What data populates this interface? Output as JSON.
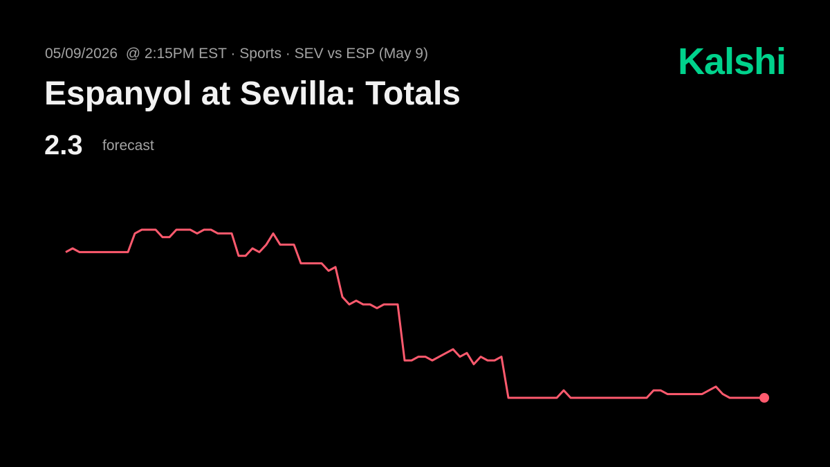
{
  "chart_data": {
    "type": "line",
    "brand": "Kalshi",
    "subtitle": "05/09/2026  @ 2:15PM EST · Sports · SEV vs ESP (May 9)",
    "title": "Espanyol at Sevilla: Totals",
    "forecast": 2.3,
    "forecast_label": "forecast",
    "color": "#ff5a6e",
    "values": [
      2.69,
      2.7,
      2.69,
      2.69,
      2.69,
      2.69,
      2.69,
      2.69,
      2.69,
      2.69,
      2.74,
      2.75,
      2.75,
      2.75,
      2.73,
      2.73,
      2.75,
      2.75,
      2.75,
      2.74,
      2.75,
      2.75,
      2.74,
      2.74,
      2.74,
      2.68,
      2.68,
      2.7,
      2.69,
      2.71,
      2.74,
      2.71,
      2.71,
      2.71,
      2.66,
      2.66,
      2.66,
      2.66,
      2.64,
      2.65,
      2.57,
      2.55,
      2.56,
      2.55,
      2.55,
      2.54,
      2.55,
      2.55,
      2.55,
      2.4,
      2.4,
      2.41,
      2.41,
      2.4,
      2.41,
      2.42,
      2.43,
      2.41,
      2.42,
      2.39,
      2.41,
      2.4,
      2.4,
      2.41,
      2.3,
      2.3,
      2.3,
      2.3,
      2.3,
      2.3,
      2.3,
      2.3,
      2.32,
      2.3,
      2.3,
      2.3,
      2.3,
      2.3,
      2.3,
      2.3,
      2.3,
      2.3,
      2.3,
      2.3,
      2.3,
      2.32,
      2.32,
      2.31,
      2.31,
      2.31,
      2.31,
      2.31,
      2.31,
      2.32,
      2.33,
      2.31,
      2.3,
      2.3,
      2.3,
      2.3,
      2.3,
      2.3
    ]
  }
}
